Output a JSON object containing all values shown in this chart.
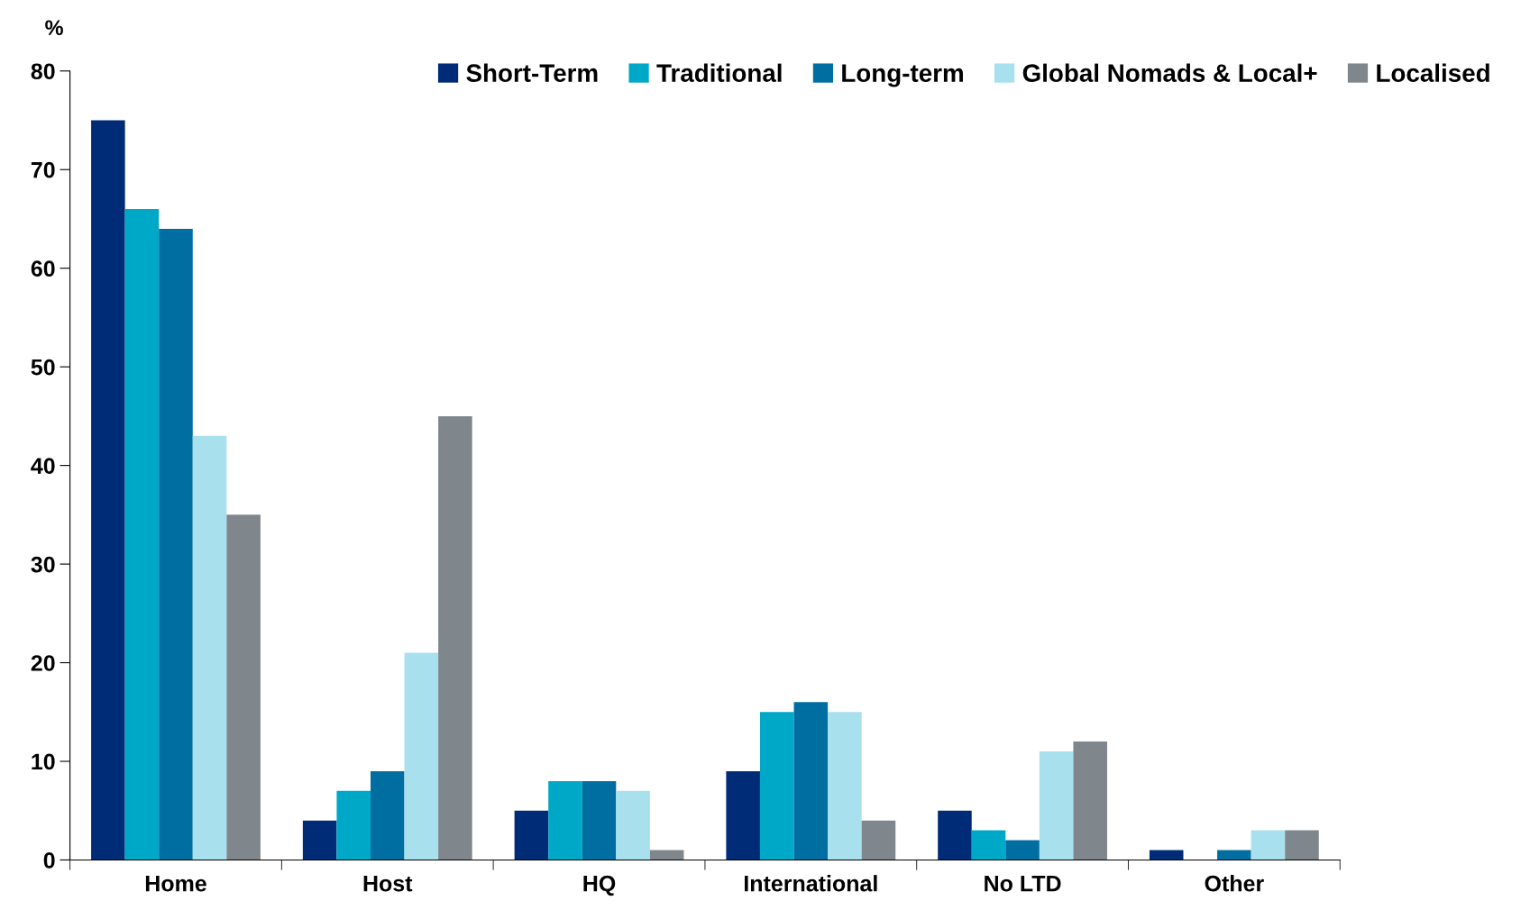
{
  "chart_data": {
    "type": "bar",
    "ylabel": "%",
    "categories": [
      "Home",
      "Host",
      "HQ",
      "International",
      "No LTD",
      "Other"
    ],
    "series": [
      {
        "name": "Short-Term",
        "color": "#002c77",
        "values": [
          75,
          4,
          5,
          9,
          5,
          1
        ]
      },
      {
        "name": "Traditional",
        "color": "#00a8c8",
        "values": [
          66,
          7,
          8,
          15,
          3,
          0
        ]
      },
      {
        "name": "Long-term",
        "color": "#006ea0",
        "values": [
          64,
          9,
          8,
          16,
          2,
          1
        ]
      },
      {
        "name": "Global Nomads & Local+",
        "color": "#a8e0ee",
        "values": [
          43,
          21,
          7,
          15,
          11,
          3
        ]
      },
      {
        "name": "Localised",
        "color": "#7f868c",
        "values": [
          35,
          45,
          1,
          4,
          12,
          3
        ]
      }
    ],
    "ylim": [
      0,
      80
    ],
    "yticks": [
      0,
      10,
      20,
      30,
      40,
      50,
      60,
      70,
      80
    ],
    "grid": false,
    "legend": "top right"
  }
}
